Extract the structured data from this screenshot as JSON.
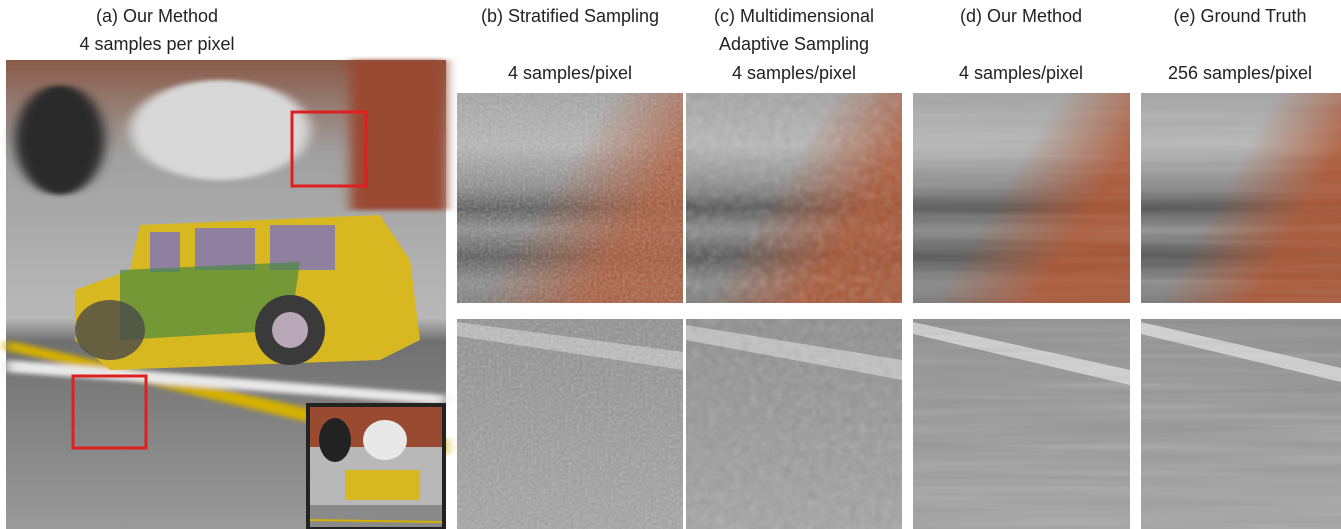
{
  "panels": [
    {
      "title_lines": [
        "(a) Our Method"
      ],
      "samples": "4 samples per pixel"
    },
    {
      "title_lines": [
        "(b) Stratified Sampling"
      ],
      "samples": "4 samples/pixel"
    },
    {
      "title_lines": [
        "(c) Multidimensional",
        "Adaptive Sampling"
      ],
      "samples": "4 samples/pixel"
    },
    {
      "title_lines": [
        "(d) Our Method"
      ],
      "samples": "4 samples/pixel"
    },
    {
      "title_lines": [
        "(e) Ground Truth"
      ],
      "samples": "256 samples/pixel"
    }
  ]
}
